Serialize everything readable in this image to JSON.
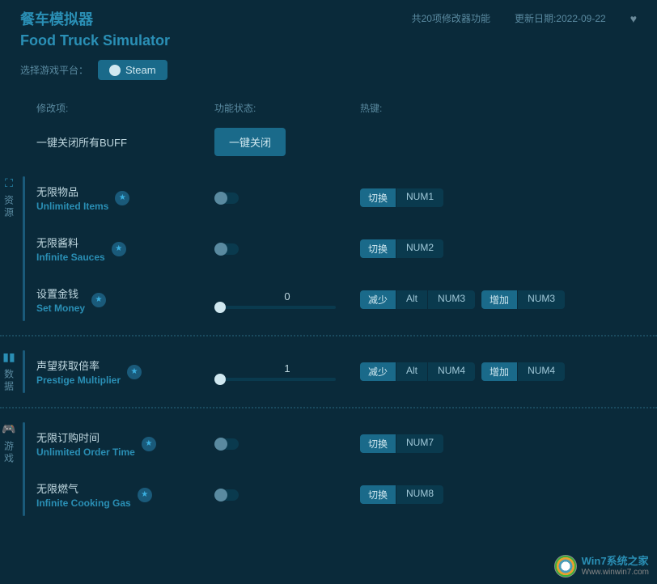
{
  "header": {
    "title_cn": "餐车模拟器",
    "title_en": "Food Truck Simulator",
    "mods_count": "共20项修改器功能",
    "update_date": "更新日期:2022-09-22"
  },
  "platform": {
    "label": "选择游戏平台：",
    "steam": "Steam"
  },
  "columns": {
    "mod": "修改项:",
    "state": "功能状态:",
    "hotkey": "热键:"
  },
  "close_all": {
    "label": "一键关闭所有BUFF",
    "button": "一键关闭"
  },
  "hk_labels": {
    "toggle": "切换",
    "dec": "减少",
    "inc": "增加",
    "alt": "Alt"
  },
  "sections": {
    "resources": {
      "tab": "资源",
      "items": [
        {
          "cn": "无限物品",
          "en": "Unlimited Items",
          "type": "toggle",
          "hotkey": "NUM1"
        },
        {
          "cn": "无限酱料",
          "en": "Infinite Sauces",
          "type": "toggle",
          "hotkey": "NUM2"
        },
        {
          "cn": "设置金钱",
          "en": "Set Money",
          "type": "slider",
          "value": "0",
          "hotkey": "NUM3"
        }
      ]
    },
    "stats": {
      "tab": "数据",
      "items": [
        {
          "cn": "声望获取倍率",
          "en": "Prestige Multiplier",
          "type": "slider",
          "value": "1",
          "hotkey": "NUM4"
        }
      ]
    },
    "game": {
      "tab": "游戏",
      "items": [
        {
          "cn": "无限订购时间",
          "en": "Unlimited Order Time",
          "type": "toggle",
          "hotkey": "NUM7"
        },
        {
          "cn": "无限燃气",
          "en": "Infinite Cooking Gas",
          "type": "toggle",
          "hotkey": "NUM8"
        }
      ]
    }
  },
  "watermark": {
    "brand_prefix": "Win7",
    "brand_suffix": "系统之家",
    "url": "Www.winwin7.com"
  }
}
